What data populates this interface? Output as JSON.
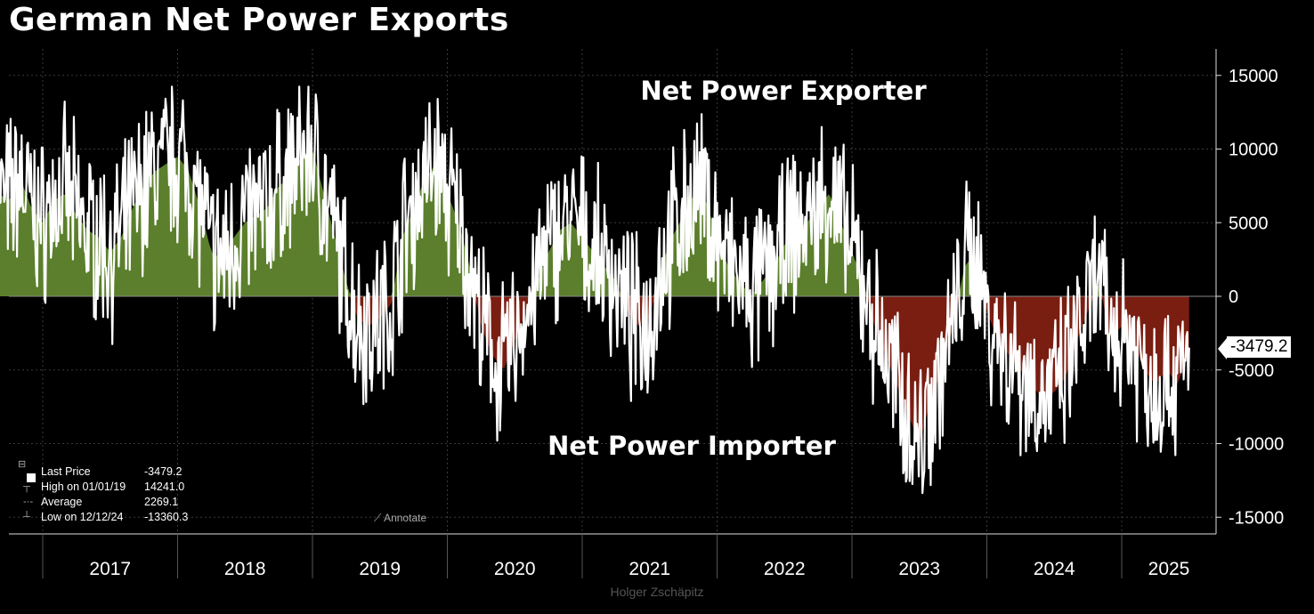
{
  "title": "German Net Power Exports",
  "annotations": {
    "exporter": "Net Power Exporter",
    "importer": "Net Power Importer"
  },
  "legend": {
    "last_label": "Last Price",
    "last_value": "-3479.2",
    "high_label": "High on 01/01/19",
    "high_value": "14241.0",
    "avg_label": "Average",
    "avg_value": "2269.1",
    "low_label": "Low on 12/12/24",
    "low_value": "-13360.3"
  },
  "annotate_label": "Annotate",
  "credit": "Holger Zschäpitz",
  "last_value_tag": "-3479.2",
  "colors": {
    "positive_fill": "#5b7f2c",
    "negative_fill": "#7a1e12",
    "line": "#ffffff",
    "background": "#000000"
  },
  "chart_data": {
    "type": "line",
    "title": "German Net Power Exports",
    "xlabel": "",
    "ylabel": "",
    "x_categories": [
      "2017",
      "2018",
      "2019",
      "2020",
      "2021",
      "2022",
      "2023",
      "2024",
      "2025"
    ],
    "xlim": [
      "2016-09",
      "2025-07"
    ],
    "yticks": [
      15000,
      10000,
      5000,
      0,
      -5000,
      -10000,
      -15000
    ],
    "ytick_labels": [
      "15000",
      "10000",
      "5000",
      "0",
      "-5000",
      "-10000",
      "-15000"
    ],
    "ylim": [
      -16500,
      16500
    ],
    "grid": true,
    "series": [
      {
        "values": [
          [
            "2016-09",
            7000
          ],
          [
            "2016-10",
            6500
          ],
          [
            "2016-11",
            8000
          ],
          [
            "2016-12",
            6000
          ],
          [
            "2017-01",
            5000
          ],
          [
            "2017-02",
            6500
          ],
          [
            "2017-03",
            7000
          ],
          [
            "2017-04",
            5500
          ],
          [
            "2017-05",
            4500
          ],
          [
            "2017-06",
            4000
          ],
          [
            "2017-07",
            3000
          ],
          [
            "2017-08",
            4000
          ],
          [
            "2017-09",
            6000
          ],
          [
            "2017-10",
            7500
          ],
          [
            "2017-11",
            8500
          ],
          [
            "2017-12",
            9000
          ],
          [
            "2018-01",
            9500
          ],
          [
            "2018-02",
            8500
          ],
          [
            "2018-03",
            6000
          ],
          [
            "2018-04",
            3000
          ],
          [
            "2018-05",
            2500
          ],
          [
            "2018-06",
            4000
          ],
          [
            "2018-07",
            5000
          ],
          [
            "2018-08",
            5500
          ],
          [
            "2018-09",
            6000
          ],
          [
            "2018-10",
            7500
          ],
          [
            "2018-11",
            8000
          ],
          [
            "2018-12",
            9500
          ],
          [
            "2019-01",
            10000
          ],
          [
            "2019-02",
            7000
          ],
          [
            "2019-03",
            4000
          ],
          [
            "2019-04",
            1000
          ],
          [
            "2019-05",
            -1500
          ],
          [
            "2019-06",
            -2000
          ],
          [
            "2019-07",
            -1500
          ],
          [
            "2019-08",
            -500
          ],
          [
            "2019-09",
            4000
          ],
          [
            "2019-10",
            6000
          ],
          [
            "2019-11",
            8000
          ],
          [
            "2019-12",
            9000
          ],
          [
            "2020-01",
            7000
          ],
          [
            "2020-02",
            5000
          ],
          [
            "2020-03",
            2000
          ],
          [
            "2020-04",
            -2000
          ],
          [
            "2020-05",
            -4000
          ],
          [
            "2020-06",
            -5000
          ],
          [
            "2020-07",
            -3000
          ],
          [
            "2020-08",
            -1000
          ],
          [
            "2020-09",
            1000
          ],
          [
            "2020-10",
            3000
          ],
          [
            "2020-11",
            4500
          ],
          [
            "2020-12",
            5000
          ],
          [
            "2021-01",
            4000
          ],
          [
            "2021-02",
            3000
          ],
          [
            "2021-03",
            2000
          ],
          [
            "2021-04",
            1000
          ],
          [
            "2021-05",
            -1000
          ],
          [
            "2021-06",
            -2000
          ],
          [
            "2021-07",
            -1500
          ],
          [
            "2021-08",
            2000
          ],
          [
            "2021-09",
            4000
          ],
          [
            "2021-10",
            5500
          ],
          [
            "2021-11",
            7000
          ],
          [
            "2021-12",
            6500
          ],
          [
            "2022-01",
            4000
          ],
          [
            "2022-02",
            2000
          ],
          [
            "2022-03",
            1000
          ],
          [
            "2022-04",
            0
          ],
          [
            "2022-05",
            1000
          ],
          [
            "2022-06",
            2000
          ],
          [
            "2022-07",
            3500
          ],
          [
            "2022-08",
            4500
          ],
          [
            "2022-09",
            5000
          ],
          [
            "2022-10",
            6000
          ],
          [
            "2022-11",
            7000
          ],
          [
            "2022-12",
            5000
          ],
          [
            "2023-01",
            3000
          ],
          [
            "2023-02",
            1000
          ],
          [
            "2023-03",
            -2000
          ],
          [
            "2023-04",
            -4000
          ],
          [
            "2023-05",
            -6000
          ],
          [
            "2023-06",
            -8000
          ],
          [
            "2023-07",
            -10000
          ],
          [
            "2023-08",
            -7000
          ],
          [
            "2023-09",
            -5000
          ],
          [
            "2023-10",
            -2000
          ],
          [
            "2023-11",
            2000
          ],
          [
            "2023-12",
            3000
          ],
          [
            "2024-01",
            -1000
          ],
          [
            "2024-02",
            -3000
          ],
          [
            "2024-03",
            -4000
          ],
          [
            "2024-04",
            -5000
          ],
          [
            "2024-05",
            -6000
          ],
          [
            "2024-06",
            -7000
          ],
          [
            "2024-07",
            -6500
          ],
          [
            "2024-08",
            -5500
          ],
          [
            "2024-09",
            -3000
          ],
          [
            "2024-10",
            -1000
          ],
          [
            "2024-11",
            1000
          ],
          [
            "2024-12",
            -3000
          ],
          [
            "2025-01",
            -2000
          ],
          [
            "2025-02",
            -3000
          ],
          [
            "2025-03",
            -5000
          ],
          [
            "2025-04",
            -6000
          ],
          [
            "2025-05",
            -5000
          ],
          [
            "2025-06",
            -6000
          ],
          [
            "2025-07",
            -3479.2
          ]
        ]
      }
    ]
  }
}
